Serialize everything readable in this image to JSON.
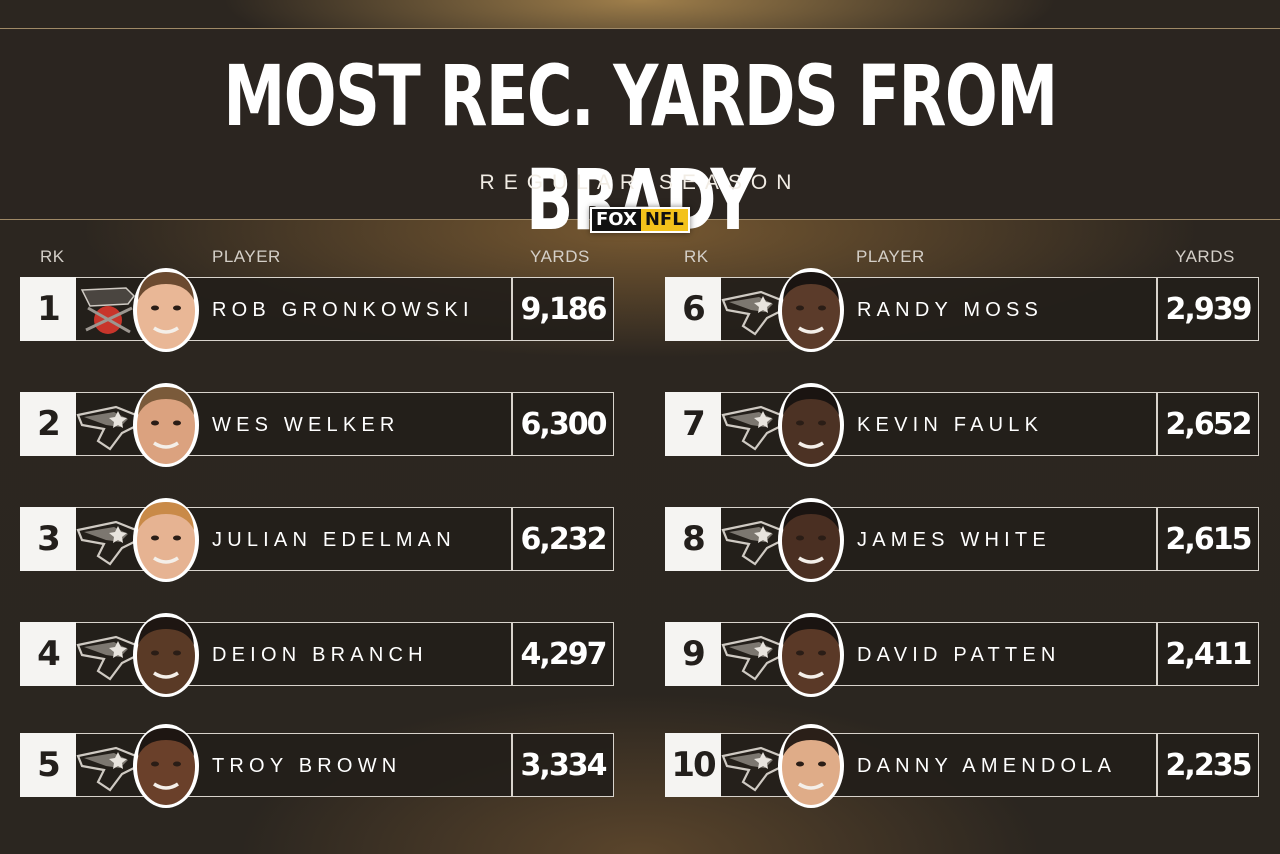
{
  "title": "MOST REC. YARDS FROM BRADY",
  "subtitle": "REGULAR SEASON",
  "logo": {
    "left": "FOX",
    "right": "NFL"
  },
  "columns": {
    "rank": "RK",
    "player": "PLAYER",
    "yards": "YARDS"
  },
  "colors": {
    "accent_nfl": "#f3c21b",
    "background": "#2b2620",
    "rank_box": "#f5f4f2"
  },
  "players": [
    {
      "rank": "1",
      "name": "ROB GRONKOWSKI",
      "yards": "9,186",
      "team_icon": "buccaneers-logo-icon"
    },
    {
      "rank": "2",
      "name": "WES WELKER",
      "yards": "6,300",
      "team_icon": "patriots-logo-icon"
    },
    {
      "rank": "3",
      "name": "JULIAN EDELMAN",
      "yards": "6,232",
      "team_icon": "patriots-logo-icon"
    },
    {
      "rank": "4",
      "name": "DEION BRANCH",
      "yards": "4,297",
      "team_icon": "patriots-logo-icon"
    },
    {
      "rank": "5",
      "name": "TROY BROWN",
      "yards": "3,334",
      "team_icon": "patriots-logo-icon"
    },
    {
      "rank": "6",
      "name": "RANDY MOSS",
      "yards": "2,939",
      "team_icon": "patriots-logo-icon"
    },
    {
      "rank": "7",
      "name": "KEVIN FAULK",
      "yards": "2,652",
      "team_icon": "patriots-logo-icon"
    },
    {
      "rank": "8",
      "name": "JAMES WHITE",
      "yards": "2,615",
      "team_icon": "patriots-logo-icon"
    },
    {
      "rank": "9",
      "name": "DAVID PATTEN",
      "yards": "2,411",
      "team_icon": "patriots-logo-icon"
    },
    {
      "rank": "10",
      "name": "DANNY AMENDOLA",
      "yards": "2,235",
      "team_icon": "patriots-logo-icon"
    }
  ]
}
